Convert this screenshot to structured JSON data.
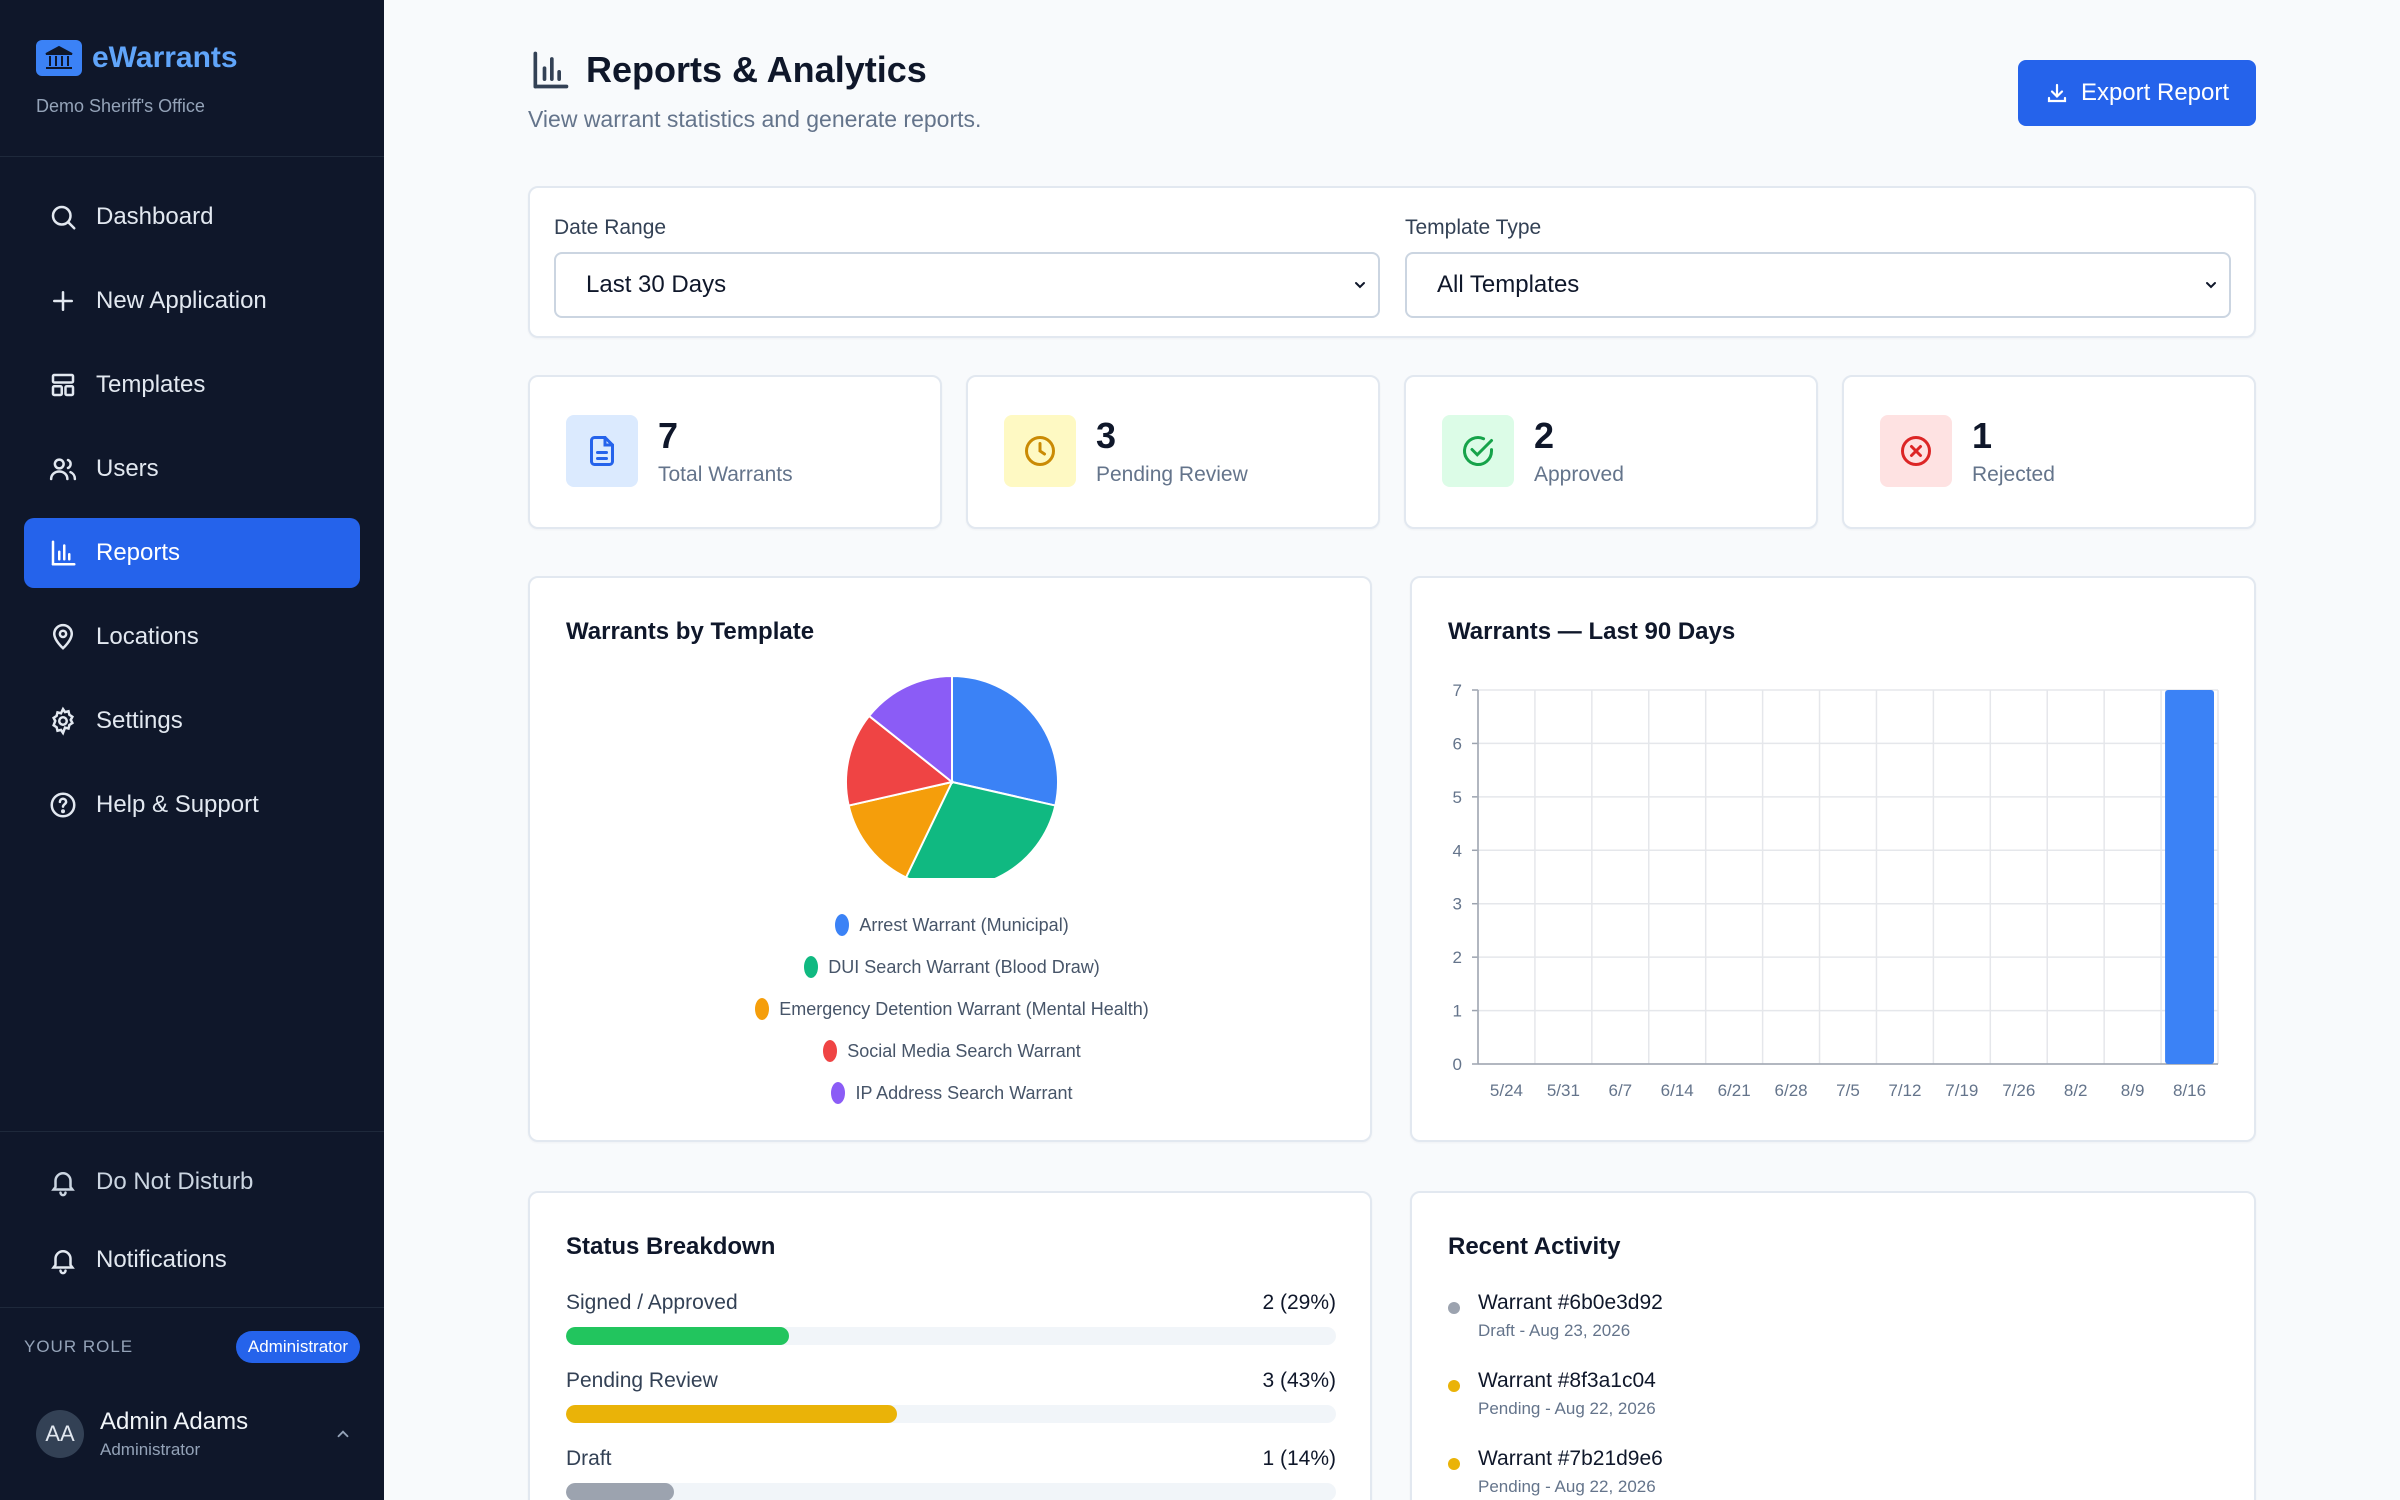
{
  "brand": {
    "name": "eWarrants",
    "subtitle": "Demo Sheriff's Office"
  },
  "sidebar": {
    "items": [
      {
        "label": "Dashboard",
        "icon": "search-icon"
      },
      {
        "label": "New Application",
        "icon": "plus-icon"
      },
      {
        "label": "Templates",
        "icon": "layout-icon"
      },
      {
        "label": "Users",
        "icon": "users-icon"
      },
      {
        "label": "Reports",
        "icon": "bar-chart-icon",
        "active": true
      },
      {
        "label": "Locations",
        "icon": "map-pin-icon"
      },
      {
        "label": "Settings",
        "icon": "gear-icon"
      },
      {
        "label": "Help & Support",
        "icon": "help-circle-icon"
      }
    ],
    "do_not_disturb": "Do Not Disturb",
    "notifications": "Notifications",
    "role_label": "YOUR ROLE",
    "role_badge": "Administrator",
    "user": {
      "initials": "AA",
      "name": "Admin Adams",
      "role": "Administrator"
    }
  },
  "header": {
    "title": "Reports & Analytics",
    "subtitle": "View warrant statistics and generate reports.",
    "export_label": "Export Report"
  },
  "filters": {
    "date_range": {
      "label": "Date Range",
      "value": "Last 30 Days"
    },
    "template_type": {
      "label": "Template Type",
      "value": "All Templates"
    }
  },
  "stats": [
    {
      "value": "7",
      "label": "Total Warrants",
      "icon": "document-icon",
      "color": "#2563eb",
      "bg": "#dbeafe"
    },
    {
      "value": "3",
      "label": "Pending Review",
      "icon": "clock-icon",
      "color": "#ca8a04",
      "bg": "#fef9c3"
    },
    {
      "value": "2",
      "label": "Approved",
      "icon": "check-circle-icon",
      "color": "#16a34a",
      "bg": "#dcfce7"
    },
    {
      "value": "1",
      "label": "Rejected",
      "icon": "x-circle-icon",
      "color": "#dc2626",
      "bg": "#fee2e2"
    }
  ],
  "charts": {
    "pie_title": "Warrants by Template",
    "bar_title": "Warrants — Last 90 Days"
  },
  "chart_data": [
    {
      "type": "pie",
      "title": "Warrants by Template",
      "labels": [
        "Arrest Warrant (Municipal)",
        "DUI Search Warrant (Blood Draw)",
        "Emergency Detention Warrant (Mental Health)",
        "Social Media Search Warrant",
        "IP Address Search Warrant"
      ],
      "values": [
        2,
        2,
        1,
        1,
        1
      ],
      "colors": [
        "#3b82f6",
        "#10b981",
        "#f59e0b",
        "#ef4444",
        "#8b5cf6"
      ],
      "legend": "bottom"
    },
    {
      "type": "bar",
      "title": "Warrants — Last 90 Days",
      "categories": [
        "5/24",
        "5/31",
        "6/7",
        "6/14",
        "6/21",
        "6/28",
        "7/5",
        "7/12",
        "7/19",
        "7/26",
        "8/2",
        "8/9",
        "8/16"
      ],
      "values": [
        0,
        0,
        0,
        0,
        0,
        0,
        0,
        0,
        0,
        0,
        0,
        0,
        7
      ],
      "ylim": [
        0,
        7
      ],
      "yticks": [
        0,
        1,
        2,
        3,
        4,
        5,
        6,
        7
      ],
      "color": "#3b82f6",
      "grid": true
    }
  ],
  "status_breakdown": {
    "title": "Status Breakdown",
    "rows": [
      {
        "label": "Signed / Approved",
        "value": "2 (29%)",
        "percent": 29,
        "color": "#22c55e"
      },
      {
        "label": "Pending Review",
        "value": "3 (43%)",
        "percent": 43,
        "color": "#eab308"
      },
      {
        "label": "Draft",
        "value": "1 (14%)",
        "percent": 14,
        "color": "#9ca3af"
      }
    ]
  },
  "recent_activity": {
    "title": "Recent Activity",
    "items": [
      {
        "title": "Warrant #6b0e3d92",
        "meta": "Draft - Aug 23, 2026",
        "color": "#9ca3af"
      },
      {
        "title": "Warrant #8f3a1c04",
        "meta": "Pending - Aug 22, 2026",
        "color": "#eab308"
      },
      {
        "title": "Warrant #7b21d9e6",
        "meta": "Pending - Aug 22, 2026",
        "color": "#eab308"
      }
    ]
  }
}
